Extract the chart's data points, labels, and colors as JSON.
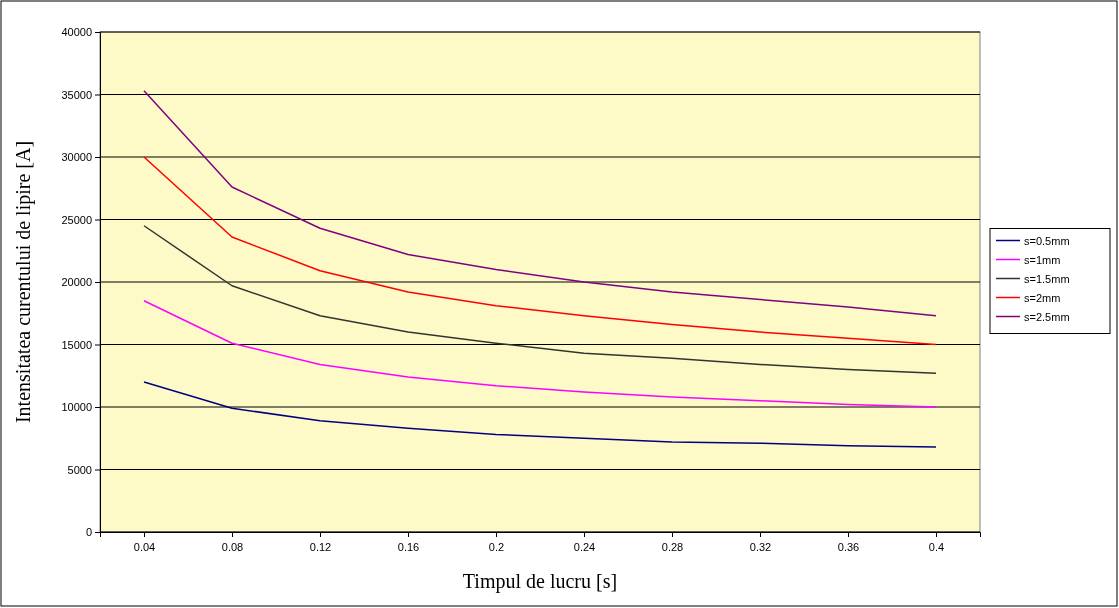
{
  "chart_data": {
    "type": "line",
    "xlabel": "Timpul de lucru [s]",
    "ylabel": "Intensitatea curentului de lipire [A]",
    "categories": [
      "0.04",
      "0.08",
      "0.12",
      "0.16",
      "0.2",
      "0.24",
      "0.28",
      "0.32",
      "0.36",
      "0.4"
    ],
    "series": [
      {
        "name": "s=0.5mm",
        "color": "#000080",
        "values": [
          12000,
          9900,
          8900,
          8300,
          7800,
          7500,
          7200,
          7100,
          6900,
          6800
        ]
      },
      {
        "name": "s=1mm",
        "color": "#ff00ff",
        "values": [
          18500,
          15100,
          13400,
          12400,
          11700,
          11200,
          10800,
          10500,
          10200,
          10000
        ]
      },
      {
        "name": "s=1.5mm",
        "color": "#333333",
        "values": [
          24500,
          19700,
          17300,
          16000,
          15100,
          14300,
          13900,
          13400,
          13000,
          12700
        ]
      },
      {
        "name": "s=2mm",
        "color": "#ff0000",
        "values": [
          30000,
          23600,
          20900,
          19200,
          18100,
          17300,
          16600,
          16000,
          15500,
          15000
        ]
      },
      {
        "name": "s=2.5mm",
        "color": "#800080",
        "values": [
          35300,
          27600,
          24300,
          22200,
          21000,
          20000,
          19200,
          18600,
          18000,
          17300
        ]
      }
    ],
    "ylim": [
      0,
      40000
    ],
    "yticks": [
      0,
      5000,
      10000,
      15000,
      20000,
      25000,
      30000,
      35000,
      40000
    ],
    "grid": "y",
    "legend": "right",
    "marker": "none",
    "line_style": "solid"
  }
}
